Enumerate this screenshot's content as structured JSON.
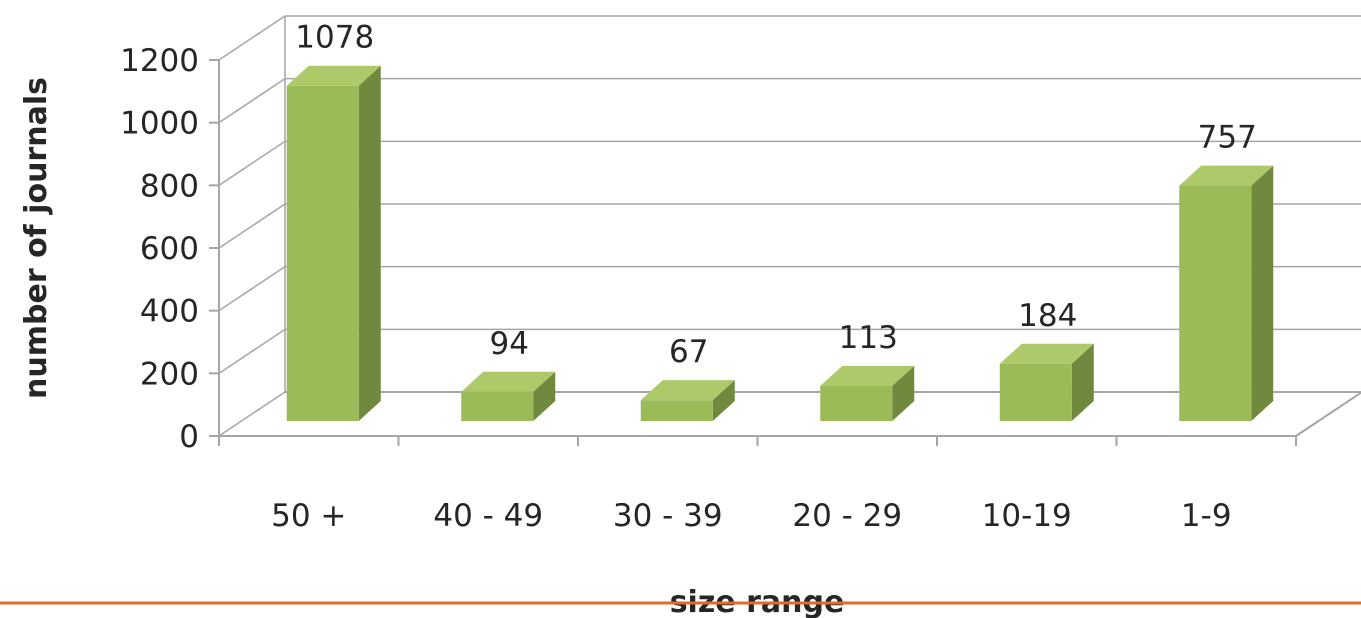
{
  "chart_data": {
    "type": "bar",
    "categories": [
      "50 +",
      "40 - 49",
      "30 - 39",
      "20 - 29",
      "10-19",
      "1-9"
    ],
    "values": [
      1078,
      94,
      67,
      113,
      184,
      757
    ],
    "data_labels": [
      "1078",
      "94",
      "67",
      "113",
      "184",
      "757"
    ],
    "title": "",
    "xlabel": "size range",
    "ylabel": "number of journals",
    "ylim": [
      0,
      1200
    ],
    "yticks": [
      0,
      200,
      400,
      600,
      800,
      1000,
      1200
    ],
    "ytick_labels": [
      "0",
      "200",
      "400",
      "600",
      "800",
      "1000",
      "1200"
    ],
    "grid": true,
    "legend": "none",
    "style": "3d-column",
    "colors": {
      "bar_front": "#9bbb59",
      "bar_top": "#adc96a",
      "bar_side": "#71893f",
      "gridline": "#a6a6a6",
      "baseline_rule": "#e26b2b"
    }
  }
}
